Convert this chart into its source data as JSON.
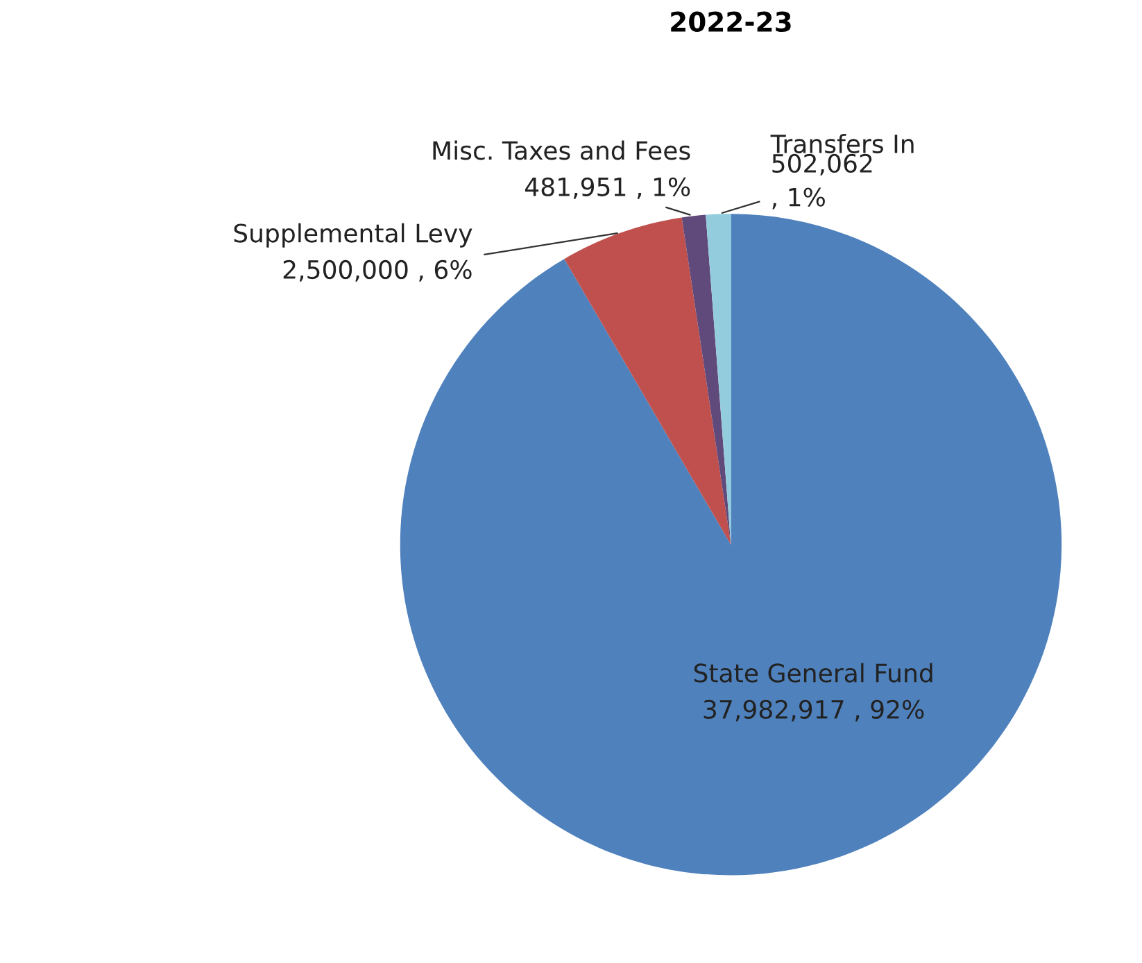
{
  "chart_data": {
    "type": "pie",
    "title": "2022-23",
    "categories": [
      "State General Fund",
      "Supplemental Levy",
      "Misc. Taxes and Fees",
      "Transfers In"
    ],
    "values": [
      37982917,
      2500000,
      481951,
      502062
    ],
    "colors": [
      "#4f81bd",
      "#c0504d",
      "#604a7b",
      "#93cddd"
    ],
    "value_labels": [
      "37,982,917 , 92%",
      "2,500,000 , 6%",
      "481,951 , 1%",
      "502,062\n, 1%"
    ],
    "legend": false
  }
}
